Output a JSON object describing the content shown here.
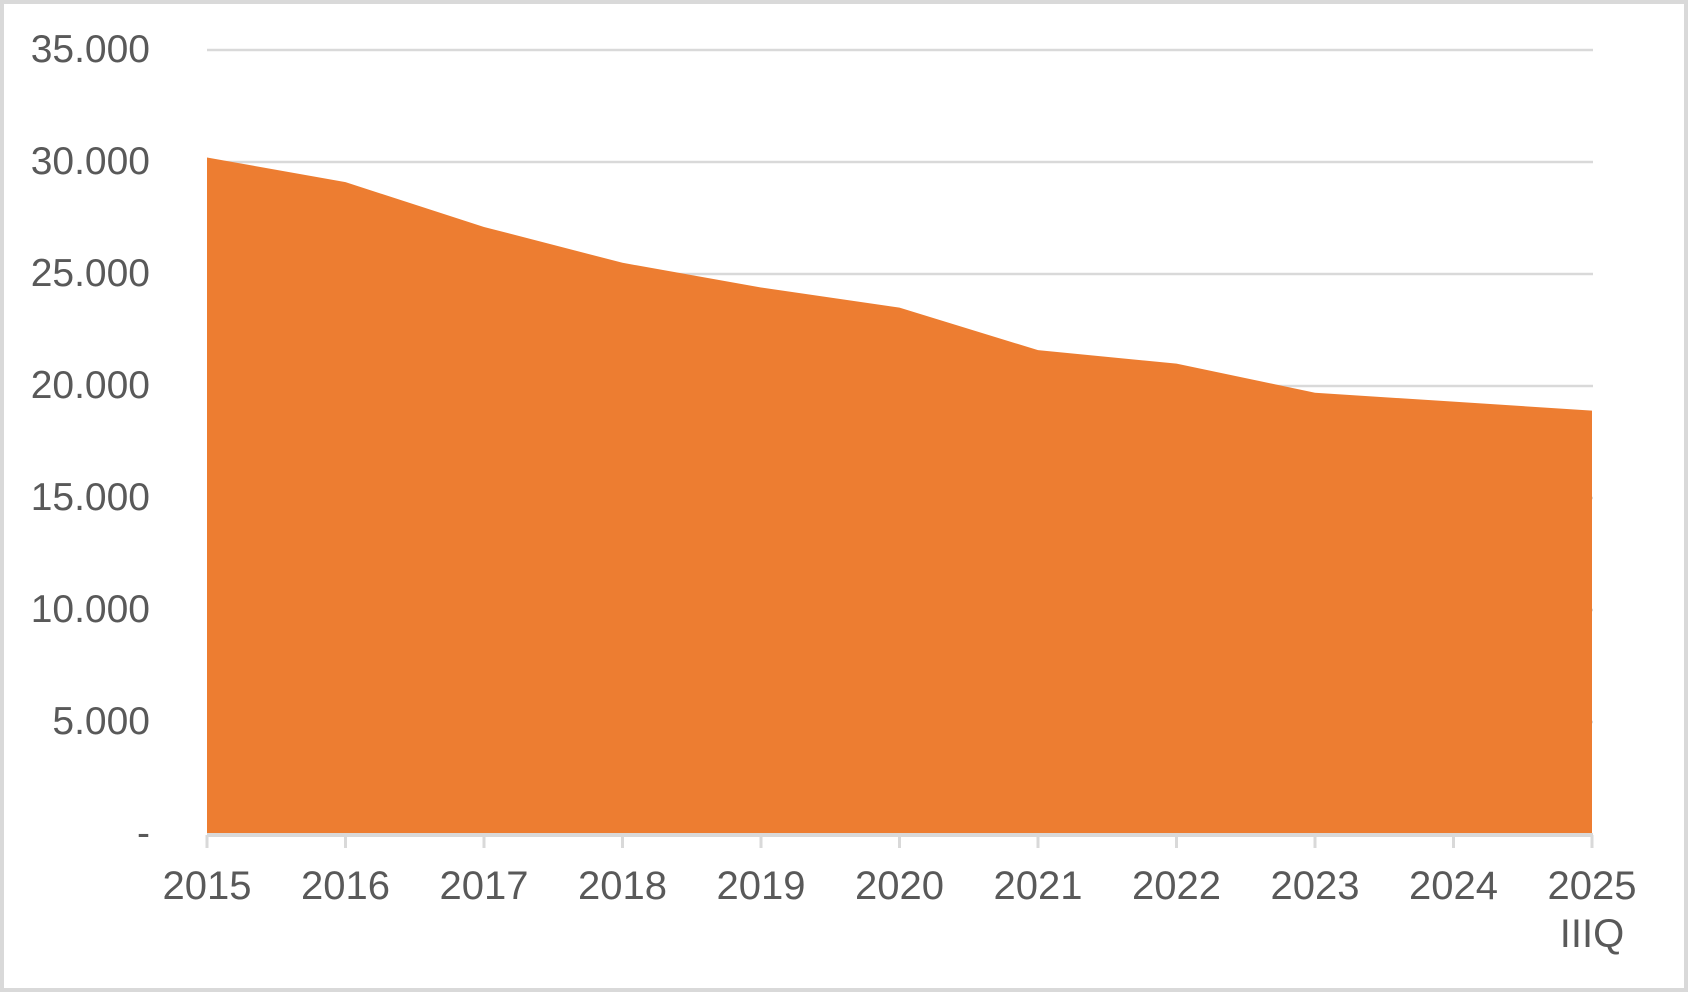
{
  "chart_data": {
    "type": "area",
    "title": "",
    "xlabel": "",
    "ylabel": "",
    "categories": [
      "2015",
      "2016",
      "2017",
      "2018",
      "2019",
      "2020",
      "2021",
      "2022",
      "2023",
      "2024",
      "2025"
    ],
    "last_category_second_line": "IIIQ",
    "values": [
      30200,
      29100,
      27100,
      25500,
      24400,
      23500,
      21600,
      21000,
      19700,
      19300,
      18900
    ],
    "ylim": [
      0,
      35000
    ],
    "y_ticks": [
      {
        "value": 0,
        "label": "-"
      },
      {
        "value": 5000,
        "label": "5.000"
      },
      {
        "value": 10000,
        "label": "10.000"
      },
      {
        "value": 15000,
        "label": "15.000"
      },
      {
        "value": 20000,
        "label": "20.000"
      },
      {
        "value": 25000,
        "label": "25.000"
      },
      {
        "value": 30000,
        "label": "30.000"
      },
      {
        "value": 35000,
        "label": "35.000"
      }
    ],
    "grid": true,
    "legend_position": "none",
    "colors": {
      "area_fill": "#ED7D31",
      "gridline": "#D9D9D9",
      "axis_line": "#D9D9D9",
      "tick": "#D9D9D9",
      "label_text": "#595959",
      "background": "#FFFFFF",
      "frame_border": "#D9D9D9"
    }
  }
}
